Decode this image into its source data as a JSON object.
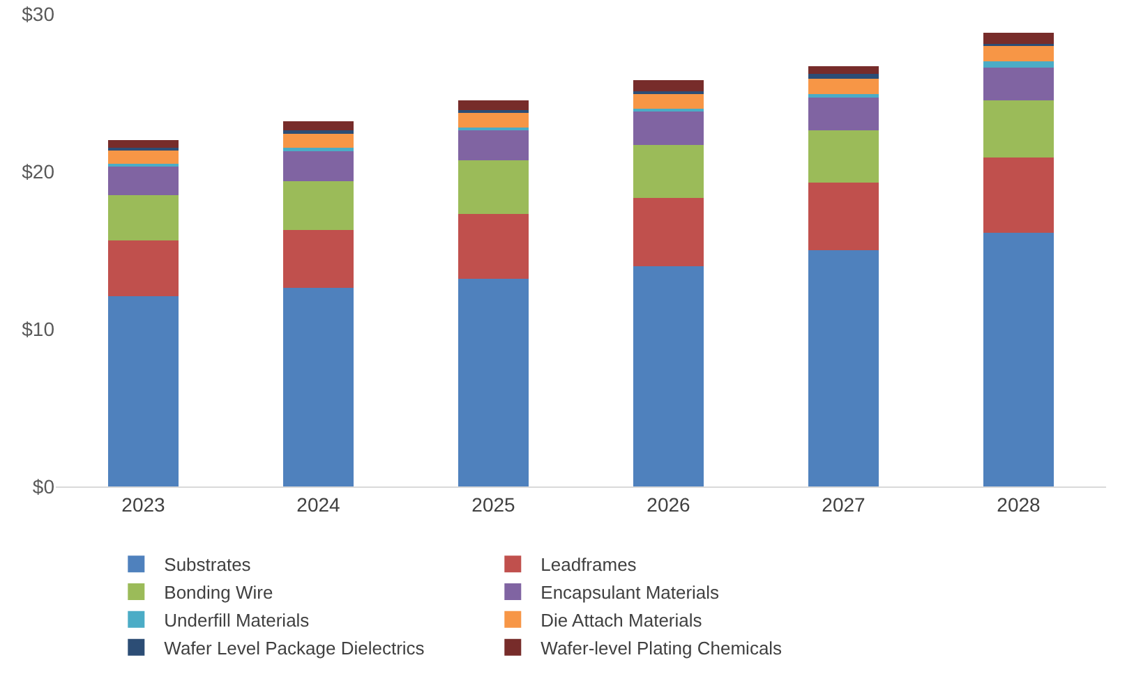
{
  "chart_data": {
    "type": "bar",
    "stacked": true,
    "categories": [
      "2023",
      "2024",
      "2025",
      "2026",
      "2027",
      "2028"
    ],
    "ylim": [
      0,
      30
    ],
    "yticks": [
      {
        "value": 0,
        "label": "$0"
      },
      {
        "value": 10,
        "label": "$10"
      },
      {
        "value": 20,
        "label": "$20"
      },
      {
        "value": 30,
        "label": "$30"
      }
    ],
    "grid": false,
    "legend": "bottom",
    "series": [
      {
        "name": "Substrates",
        "color": "#4f81bd",
        "values": [
          12.1,
          12.6,
          13.2,
          14.0,
          15.0,
          16.1
        ]
      },
      {
        "name": "Leadframes",
        "color": "#c0504d",
        "values": [
          3.5,
          3.7,
          4.1,
          4.3,
          4.3,
          4.8
        ]
      },
      {
        "name": "Bonding Wire",
        "color": "#9bbb59",
        "values": [
          2.9,
          3.1,
          3.4,
          3.4,
          3.3,
          3.6
        ]
      },
      {
        "name": "Encapsulant Materials",
        "color": "#8064a2",
        "values": [
          1.8,
          1.9,
          1.9,
          2.1,
          2.1,
          2.1
        ]
      },
      {
        "name": "Underfill Materials",
        "color": "#4bacc6",
        "values": [
          0.2,
          0.2,
          0.2,
          0.2,
          0.2,
          0.4
        ]
      },
      {
        "name": "Die Attach Materials",
        "color": "#f79646",
        "values": [
          0.9,
          0.9,
          0.9,
          0.9,
          1.0,
          1.0
        ]
      },
      {
        "name": "Wafer Level Package Dielectrics",
        "color": "#2c4d75",
        "values": [
          0.1,
          0.2,
          0.2,
          0.2,
          0.3,
          0.1
        ]
      },
      {
        "name": "Wafer-level Plating Chemicals",
        "color": "#772c2a",
        "values": [
          0.5,
          0.6,
          0.6,
          0.7,
          0.5,
          0.7
        ]
      }
    ]
  }
}
